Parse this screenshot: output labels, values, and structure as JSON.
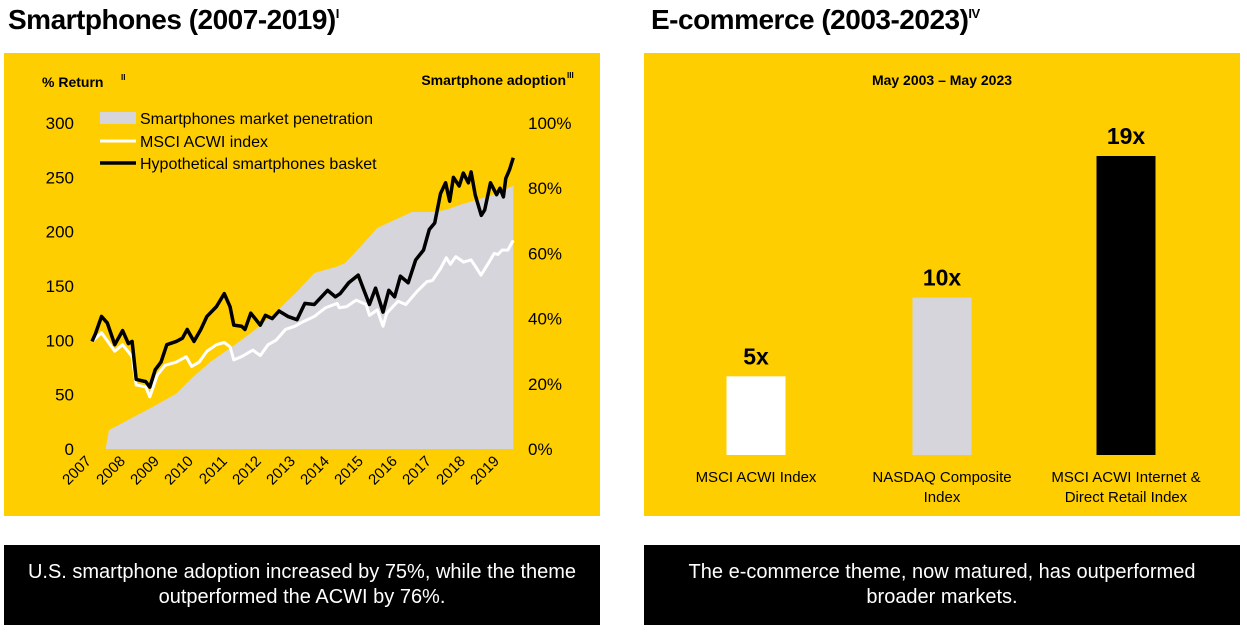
{
  "left": {
    "title": "Smartphones (2007-2019)",
    "title_sup": "I",
    "caption": "U.S. smartphone adoption increased by 75%, while the theme outperformed the ACWI by 76%."
  },
  "right": {
    "title": "E-commerce (2003-2023)",
    "title_sup": "IV",
    "caption": "The e-commerce theme, now matured, has outperformed broader markets."
  },
  "colors": {
    "background": "#FFCE00",
    "penetration": "#D6D5DC",
    "msci": "#FFFFFF",
    "basket": "#000000"
  },
  "chart_data": [
    {
      "type": "line",
      "ylabel": "% Return",
      "ylabel_sup": "II",
      "y2label": "Smartphone adoption",
      "y2label_sup": "III",
      "ylim": [
        0,
        300
      ],
      "yticks": [
        0,
        50,
        100,
        150,
        200,
        250,
        300
      ],
      "y2lim": [
        0,
        100
      ],
      "y2ticks": [
        "0%",
        "20%",
        "40%",
        "60%",
        "80%",
        "100%"
      ],
      "xticks": [
        "2007",
        "2008",
        "2009",
        "2010",
        "2011",
        "2012",
        "2013",
        "2014",
        "2015",
        "2016",
        "2017",
        "2018",
        "2019"
      ],
      "legend_position": "top-left",
      "grid": false,
      "series": [
        {
          "name": "Smartphones market penetration",
          "kind": "area",
          "axis": "right",
          "points": [
            [
              2007.0,
              0
            ],
            [
              2007.4,
              0
            ],
            [
              2007.5,
              5.8
            ],
            [
              2008.15,
              9.4
            ],
            [
              2008.8,
              13
            ],
            [
              2009.48,
              17
            ],
            [
              2009.93,
              21.7
            ],
            [
              2010.49,
              26.8
            ],
            [
              2011.06,
              30.9
            ],
            [
              2011.73,
              36
            ],
            [
              2012.41,
              42
            ],
            [
              2013.08,
              48.8
            ],
            [
              2013.54,
              54
            ],
            [
              2013.87,
              55
            ],
            [
              2014.21,
              56
            ],
            [
              2014.44,
              57
            ],
            [
              2014.89,
              62
            ],
            [
              2015.39,
              67.8
            ],
            [
              2015.9,
              70.3
            ],
            [
              2016.41,
              72.7
            ],
            [
              2017.08,
              72.7
            ],
            [
              2017.42,
              73.4
            ],
            [
              2017.82,
              74.9
            ],
            [
              2018.49,
              77
            ],
            [
              2018.94,
              78.5
            ],
            [
              2019.39,
              80.8
            ]
          ]
        },
        {
          "name": "MSCI ACWI index",
          "kind": "line",
          "axis": "left",
          "points": [
            [
              2007.0,
              99
            ],
            [
              2007.28,
              107
            ],
            [
              2007.67,
              90
            ],
            [
              2007.9,
              96
            ],
            [
              2008.18,
              85
            ],
            [
              2008.3,
              59
            ],
            [
              2008.58,
              57
            ],
            [
              2008.7,
              48
            ],
            [
              2008.92,
              68
            ],
            [
              2009.15,
              77
            ],
            [
              2009.48,
              80
            ],
            [
              2009.77,
              85
            ],
            [
              2009.93,
              76
            ],
            [
              2010.15,
              80
            ],
            [
              2010.38,
              90
            ],
            [
              2010.66,
              96
            ],
            [
              2010.89,
              98
            ],
            [
              2011.06,
              94
            ],
            [
              2011.17,
              82
            ],
            [
              2011.4,
              85
            ],
            [
              2011.73,
              91
            ],
            [
              2011.95,
              86
            ],
            [
              2012.18,
              96
            ],
            [
              2012.41,
              100
            ],
            [
              2012.69,
              110
            ],
            [
              2012.97,
              113
            ],
            [
              2013.2,
              117
            ],
            [
              2013.54,
              122
            ],
            [
              2013.87,
              130
            ],
            [
              2014.21,
              134
            ],
            [
              2014.27,
              130
            ],
            [
              2014.49,
              131
            ],
            [
              2014.77,
              137
            ],
            [
              2015.06,
              133
            ],
            [
              2015.16,
              123
            ],
            [
              2015.39,
              128
            ],
            [
              2015.56,
              113
            ],
            [
              2015.67,
              125
            ],
            [
              2016.0,
              136
            ],
            [
              2016.23,
              133
            ],
            [
              2016.56,
              145
            ],
            [
              2016.85,
              154
            ],
            [
              2017.01,
              155
            ],
            [
              2017.25,
              166
            ],
            [
              2017.42,
              176
            ],
            [
              2017.54,
              170
            ],
            [
              2017.7,
              177
            ],
            [
              2017.93,
              172
            ],
            [
              2018.15,
              174
            ],
            [
              2018.32,
              166
            ],
            [
              2018.44,
              160
            ],
            [
              2018.66,
              171
            ],
            [
              2018.83,
              180
            ],
            [
              2018.94,
              179
            ],
            [
              2019.06,
              183
            ],
            [
              2019.23,
              183
            ],
            [
              2019.39,
              192
            ]
          ]
        },
        {
          "name": "Hypothetical smartphones basket",
          "kind": "line",
          "axis": "left",
          "points": [
            [
              2007.0,
              99
            ],
            [
              2007.1,
              106
            ],
            [
              2007.28,
              122
            ],
            [
              2007.45,
              116
            ],
            [
              2007.67,
              96
            ],
            [
              2007.9,
              109
            ],
            [
              2008.07,
              97
            ],
            [
              2008.18,
              99
            ],
            [
              2008.3,
              64
            ],
            [
              2008.58,
              62
            ],
            [
              2008.7,
              57
            ],
            [
              2008.86,
              73
            ],
            [
              2009.03,
              80
            ],
            [
              2009.2,
              96
            ],
            [
              2009.48,
              99
            ],
            [
              2009.66,
              102
            ],
            [
              2009.8,
              110
            ],
            [
              2010.0,
              99
            ],
            [
              2010.2,
              110
            ],
            [
              2010.38,
              122
            ],
            [
              2010.66,
              131
            ],
            [
              2010.89,
              143
            ],
            [
              2011.06,
              131
            ],
            [
              2011.17,
              114
            ],
            [
              2011.4,
              113
            ],
            [
              2011.5,
              110
            ],
            [
              2011.67,
              125
            ],
            [
              2011.95,
              114
            ],
            [
              2012.1,
              123
            ],
            [
              2012.3,
              120
            ],
            [
              2012.5,
              127
            ],
            [
              2012.76,
              122
            ],
            [
              2013.03,
              119
            ],
            [
              2013.26,
              134
            ],
            [
              2013.54,
              133
            ],
            [
              2013.93,
              146
            ],
            [
              2014.16,
              140
            ],
            [
              2014.3,
              143
            ],
            [
              2014.55,
              153
            ],
            [
              2014.83,
              160
            ],
            [
              2015.0,
              146
            ],
            [
              2015.16,
              133
            ],
            [
              2015.34,
              148
            ],
            [
              2015.56,
              126
            ],
            [
              2015.73,
              146
            ],
            [
              2015.9,
              140
            ],
            [
              2016.07,
              159
            ],
            [
              2016.3,
              153
            ],
            [
              2016.52,
              174
            ],
            [
              2016.75,
              183
            ],
            [
              2016.92,
              202
            ],
            [
              2017.08,
              208
            ],
            [
              2017.25,
              235
            ],
            [
              2017.4,
              245
            ],
            [
              2017.52,
              228
            ],
            [
              2017.63,
              250
            ],
            [
              2017.8,
              242
            ],
            [
              2017.92,
              254
            ],
            [
              2018.07,
              245
            ],
            [
              2018.15,
              255
            ],
            [
              2018.27,
              234
            ],
            [
              2018.45,
              215
            ],
            [
              2018.55,
              220
            ],
            [
              2018.72,
              245
            ],
            [
              2018.9,
              234
            ],
            [
              2019.0,
              240
            ],
            [
              2019.1,
              232
            ],
            [
              2019.17,
              249
            ],
            [
              2019.28,
              257
            ],
            [
              2019.39,
              268
            ]
          ]
        }
      ]
    },
    {
      "type": "bar",
      "title": "May 2003 – May 2023",
      "categories": [
        "MSCI ACWI Index",
        "NASDAQ Composite Index",
        "MSCI ACWI Internet & Direct Retail Index"
      ],
      "category_lines": [
        [
          "MSCI ACWI Index"
        ],
        [
          "NASDAQ Composite",
          "Index"
        ],
        [
          "MSCI ACWI Internet &",
          "Direct Retail Index"
        ]
      ],
      "values": [
        5,
        10,
        19
      ],
      "data_labels": [
        "5x",
        "10x",
        "19x"
      ],
      "bar_colors": [
        "#FFFFFF",
        "#D6D5DC",
        "#000000"
      ]
    }
  ]
}
